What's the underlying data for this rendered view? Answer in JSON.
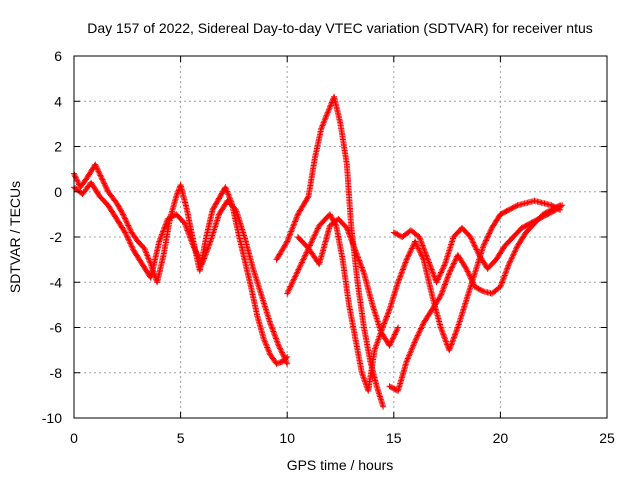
{
  "chart_data": {
    "type": "scatter",
    "title": "Day 157 of 2022, Sidereal Day-to-day VTEC variation (SDTVAR) for receiver ntus",
    "xlabel": "GPS time / hours",
    "ylabel": "SDTVAR / TECUs",
    "xlim": [
      0,
      25
    ],
    "ylim": [
      -10,
      6
    ],
    "xticks": [
      "0",
      "5",
      "10",
      "15",
      "20",
      "25"
    ],
    "yticks": [
      "6",
      "4",
      "2",
      "0",
      "-2",
      "-4",
      "-6",
      "-8",
      "-10"
    ],
    "grid": true,
    "marker": "+",
    "color": "#ff0000",
    "series": [
      {
        "x": [
          0.0,
          0.3,
          0.6,
          1.0,
          1.3,
          1.6,
          2.0,
          2.3,
          2.7,
          3.0,
          3.3,
          3.6,
          3.9,
          4.2,
          4.5,
          4.8,
          5.0,
          5.3,
          5.6,
          5.9,
          6.2,
          6.5,
          6.8,
          7.1,
          7.4,
          7.7,
          8.0,
          8.3,
          8.6,
          8.9,
          9.2,
          9.5,
          9.8,
          10.0
        ],
        "y": [
          0.8,
          0.2,
          0.6,
          1.2,
          0.6,
          0.0,
          -0.5,
          -1.0,
          -1.8,
          -2.2,
          -2.5,
          -3.2,
          -4.0,
          -2.8,
          -1.2,
          -0.2,
          0.3,
          -0.8,
          -2.2,
          -3.5,
          -2.0,
          -0.8,
          -0.3,
          0.2,
          -0.5,
          -1.8,
          -3.0,
          -4.2,
          -5.5,
          -6.5,
          -7.2,
          -7.6,
          -7.5,
          -7.3
        ]
      },
      {
        "x": [
          0.0,
          0.4,
          0.8,
          1.2,
          1.6,
          2.0,
          2.4,
          2.8,
          3.2,
          3.6,
          4.0,
          4.4,
          4.8,
          5.2,
          5.6,
          6.0,
          6.4,
          6.8,
          7.2,
          7.6,
          8.0,
          8.4,
          8.8,
          9.2,
          9.6,
          10.0
        ],
        "y": [
          0.2,
          -0.1,
          0.4,
          -0.2,
          -0.6,
          -1.2,
          -1.8,
          -2.6,
          -3.2,
          -3.8,
          -2.2,
          -1.2,
          -1.0,
          -1.4,
          -2.4,
          -3.2,
          -2.2,
          -1.0,
          -0.4,
          -0.8,
          -2.0,
          -3.4,
          -4.6,
          -5.8,
          -6.8,
          -7.6
        ]
      },
      {
        "x": [
          9.5,
          10.0,
          10.5,
          11.0,
          11.3,
          11.6,
          11.9,
          12.2,
          12.5,
          12.8,
          13.0,
          13.3,
          13.6,
          13.9,
          14.2,
          14.5
        ],
        "y": [
          -3.0,
          -2.2,
          -1.0,
          -0.2,
          1.5,
          2.8,
          3.5,
          4.2,
          3.0,
          1.2,
          -1.5,
          -4.0,
          -6.0,
          -7.5,
          -8.6,
          -9.5
        ]
      },
      {
        "x": [
          10.0,
          10.5,
          11.0,
          11.5,
          12.0,
          12.3,
          12.6,
          12.9,
          13.2,
          13.5,
          13.8,
          14.1,
          14.4,
          14.8,
          15.2
        ],
        "y": [
          -4.5,
          -3.5,
          -2.5,
          -1.5,
          -1.0,
          -1.5,
          -3.0,
          -5.0,
          -6.5,
          -8.0,
          -8.8,
          -7.0,
          -6.2,
          -6.8,
          -6.0
        ]
      },
      {
        "x": [
          10.5,
          11.0,
          11.5,
          11.8,
          12.0,
          12.4,
          12.8,
          13.2,
          13.6,
          14.0,
          14.4,
          14.8,
          15.2,
          15.6,
          16.0,
          16.4,
          16.8,
          17.2,
          17.6,
          18.0,
          18.4,
          18.8,
          19.2,
          19.6,
          20.0,
          20.4,
          20.8,
          21.2,
          21.6,
          22.0,
          22.4,
          22.8
        ],
        "y": [
          -2.0,
          -2.5,
          -3.2,
          -2.2,
          -1.5,
          -1.2,
          -1.6,
          -2.6,
          -3.6,
          -5.0,
          -6.2,
          -5.2,
          -4.0,
          -3.0,
          -2.2,
          -3.0,
          -4.6,
          -6.0,
          -7.0,
          -6.0,
          -4.8,
          -3.6,
          -2.4,
          -1.6,
          -1.0,
          -0.8,
          -0.6,
          -0.5,
          -0.4,
          -0.5,
          -0.6,
          -0.8
        ]
      },
      {
        "x": [
          15.0,
          15.4,
          15.8,
          16.2,
          16.6,
          17.0,
          17.4,
          17.8,
          18.2,
          18.6,
          19.0,
          19.4,
          19.8,
          20.2,
          20.6,
          21.0,
          21.4,
          21.8,
          22.2,
          22.6,
          22.9
        ],
        "y": [
          -1.8,
          -2.0,
          -1.7,
          -2.0,
          -3.0,
          -4.0,
          -3.2,
          -2.0,
          -1.6,
          -2.0,
          -2.8,
          -3.4,
          -3.0,
          -2.4,
          -2.0,
          -1.6,
          -1.4,
          -1.2,
          -1.0,
          -0.8,
          -0.6
        ]
      },
      {
        "x": [
          14.8,
          15.2,
          15.6,
          16.0,
          16.4,
          16.8,
          17.2,
          17.6,
          18.0,
          18.4,
          18.8,
          19.2,
          19.6,
          20.0,
          20.4,
          20.8,
          21.2,
          21.6,
          22.0,
          22.4,
          22.8
        ],
        "y": [
          -8.6,
          -8.8,
          -7.5,
          -6.6,
          -5.8,
          -5.2,
          -4.6,
          -3.6,
          -2.8,
          -3.4,
          -4.2,
          -4.4,
          -4.5,
          -4.2,
          -3.2,
          -2.4,
          -1.8,
          -1.4,
          -1.0,
          -0.8,
          -0.6
        ]
      }
    ]
  }
}
